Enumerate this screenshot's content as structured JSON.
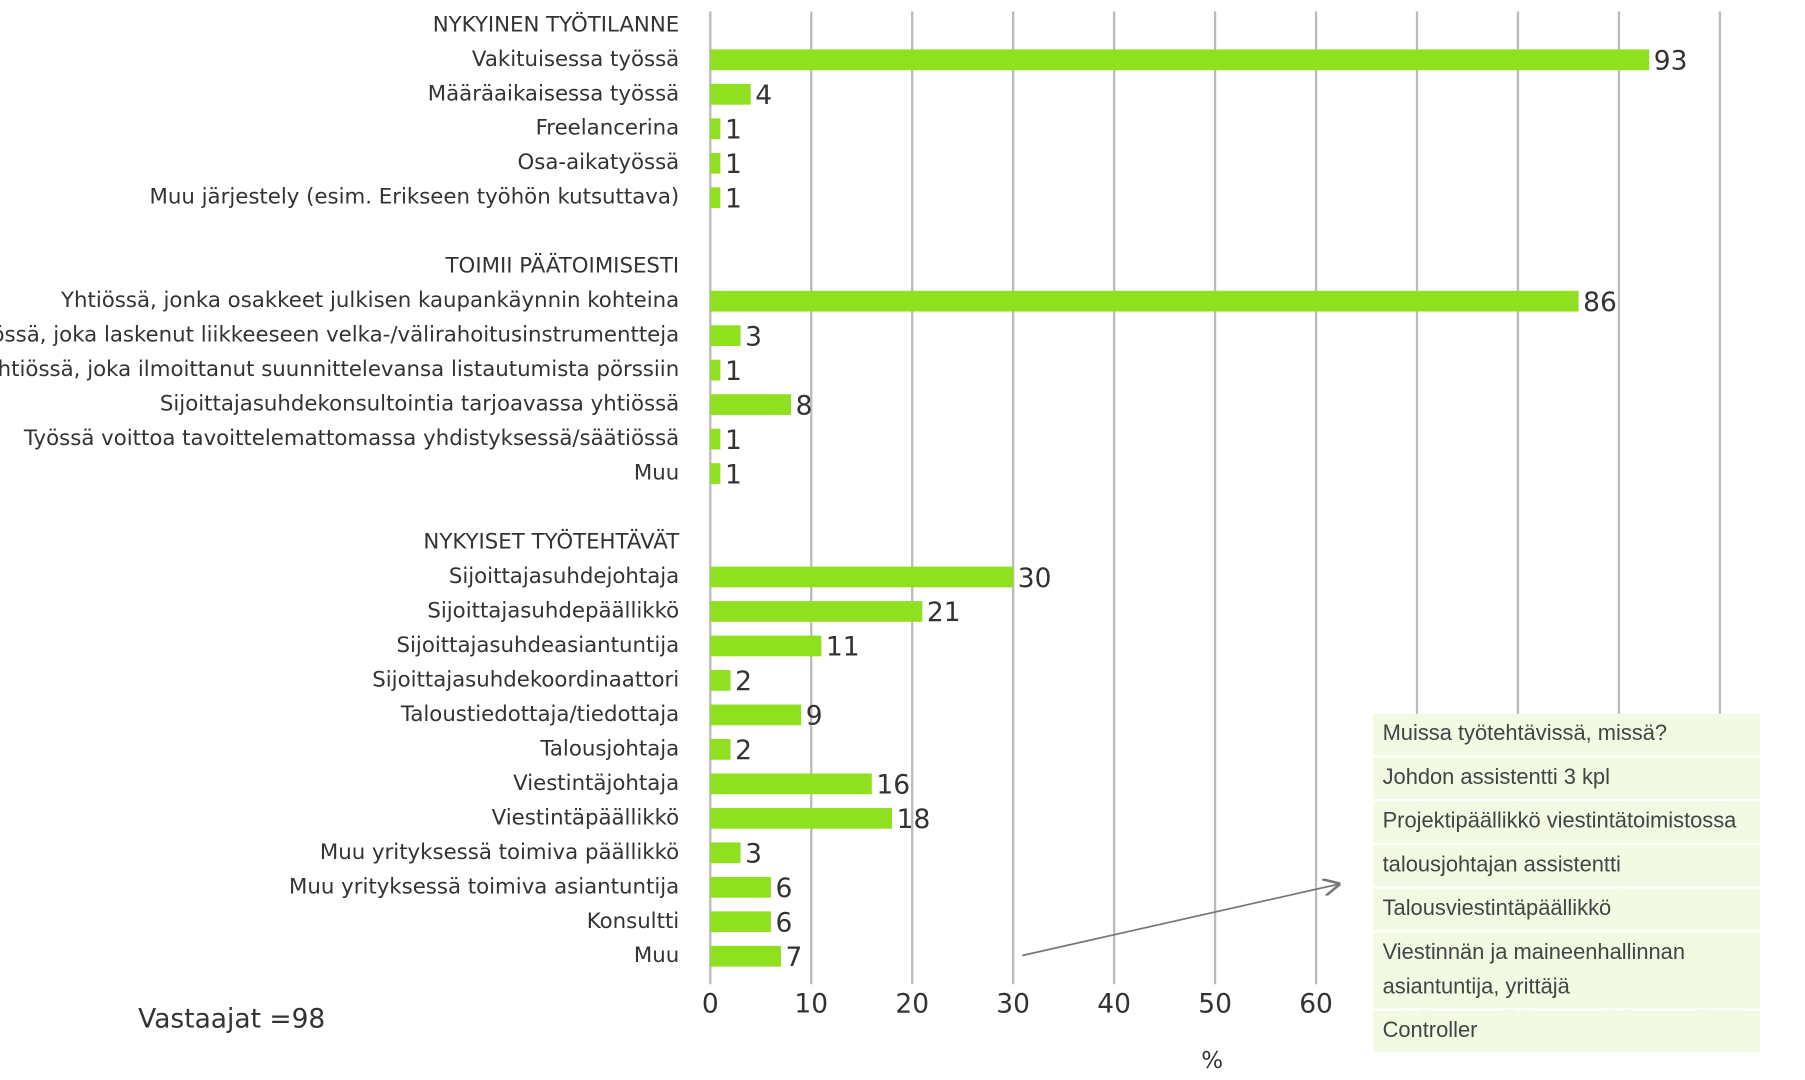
{
  "chart_data": {
    "type": "bar",
    "groups": [
      {
        "title": "NYKYINEN TYÖTILANNE",
        "categories": [
          "Vakituisessa työssä",
          "Määräaikaisessa työssä",
          "Freelancerina",
          "Osa-aikatyössä",
          "Muu järjestely (esim. Erikseen työhön kutsuttava)"
        ],
        "values": [
          93,
          4,
          1,
          1,
          1
        ]
      },
      {
        "title": "TOIMII PÄÄTOIMISESTI",
        "categories": [
          "Yhtiössä, jonka osakkeet julkisen kaupankäynnin kohteina",
          "Yhtiössä, joka laskenut liikkeeseen velka-/välirahoitusinstrumentteja",
          "Yhtiössä, joka ilmoittanut suunnittelevansa listautumista pörssiin",
          "Sijoittajasuhdekonsultointia tarjoavassa yhtiössä",
          "Työssä voittoa tavoittelemattomassa yhdistyksessä/säätiössä",
          "Muu"
        ],
        "values": [
          86,
          3,
          1,
          8,
          1,
          1
        ]
      },
      {
        "title": "NYKYISET TYÖTEHTÄVÄT",
        "categories": [
          "Sijoittajasuhdejohtaja",
          "Sijoittajasuhdepäällikkö",
          "Sijoittajasuhdeasiantuntija",
          "Sijoittajasuhdekoordinaattori",
          "Taloustiedottaja/tiedottaja",
          "Talousjohtaja",
          "Viestintäjohtaja",
          "Viestintäpäällikkö",
          "Muu yrityksessä toimiva päällikkö",
          "Muu yrityksessä toimiva asiantuntija",
          "Konsultti",
          "Muu"
        ],
        "values": [
          30,
          21,
          11,
          2,
          9,
          2,
          16,
          18,
          3,
          6,
          6,
          7
        ]
      }
    ],
    "color": "#8fe01e",
    "xlim": [
      0,
      100
    ],
    "xticks": [
      0,
      10,
      20,
      30,
      40,
      50,
      60,
      70,
      80,
      90,
      100
    ],
    "xlabel": "%",
    "grid": true,
    "annotation": "Vastaajat =98",
    "other_table": {
      "title": "Muissa työtehtävissä, missä?",
      "rows": [
        "Johdon assistentti 3 kpl",
        "Projektipäällikkö viestintätoimistossa",
        "talousjohtajan assistentti",
        "Talousviestintäpäällikkö",
        "Viestinnän ja maineenhallinnan asiantuntija, yrittäjä",
        "Controller"
      ]
    }
  }
}
